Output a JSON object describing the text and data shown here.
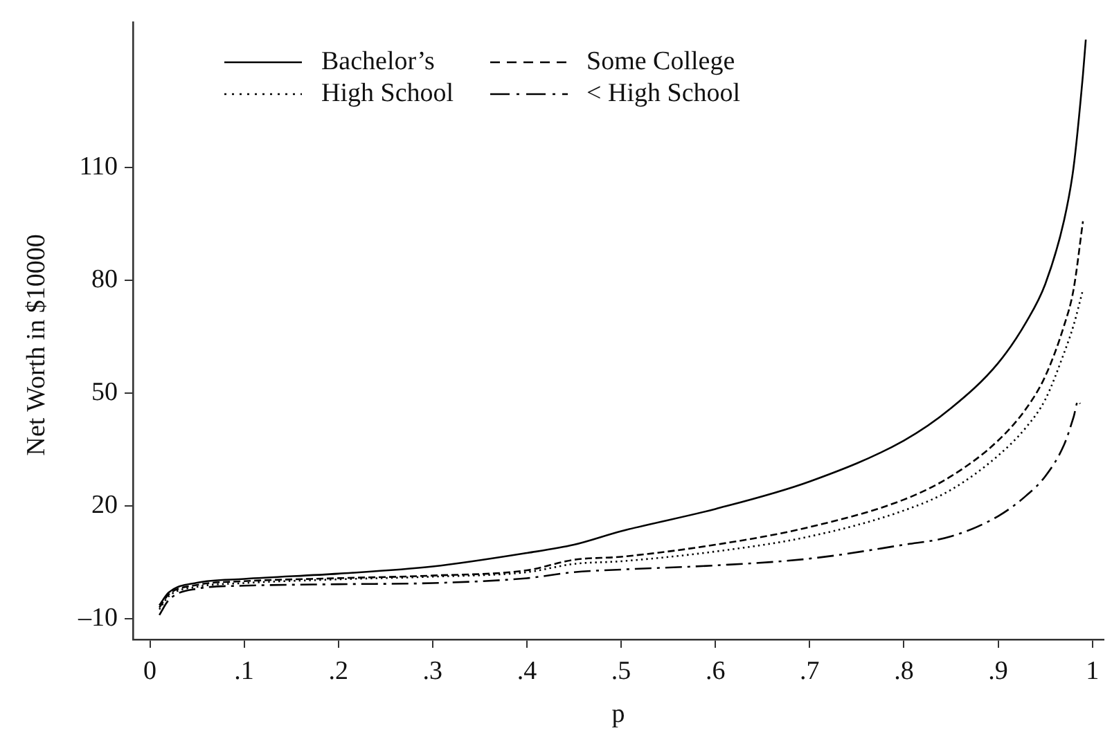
{
  "chart_data": {
    "type": "line",
    "xlabel": "p",
    "ylabel": "Net Worth in $10000",
    "xlim": [
      -0.018,
      1.012
    ],
    "ylim": [
      -15.5,
      148.5
    ],
    "xticks": [
      0,
      {
        "value": 0.1,
        "label": ".1"
      },
      {
        "value": 0.2,
        "label": ".2"
      },
      {
        "value": 0.3,
        "label": ".3"
      },
      {
        "value": 0.4,
        "label": ".4"
      },
      {
        "value": 0.5,
        "label": ".5"
      },
      {
        "value": 0.6,
        "label": ".6"
      },
      {
        "value": 0.7,
        "label": ".7"
      },
      {
        "value": 0.8,
        "label": ".8"
      },
      {
        "value": 0.9,
        "label": ".9"
      },
      1
    ],
    "yticks": [
      {
        "value": -10,
        "label": "–10"
      },
      20,
      50,
      80,
      110
    ],
    "grid": false,
    "legend": "top left",
    "marker": "none",
    "series": [
      {
        "name": "Bachelor’s",
        "color": "#000000",
        "line_style": "solid",
        "x": [
          0.01,
          0.02,
          0.05,
          0.1,
          0.2,
          0.3,
          0.4,
          0.45,
          0.5,
          0.6,
          0.7,
          0.8,
          0.85,
          0.9,
          0.93,
          0.95,
          0.97,
          0.98,
          0.99,
          0.993
        ],
        "values": [
          -6.4,
          -3,
          -0.4,
          0.6,
          2,
          3.9,
          7.5,
          9.7,
          13.3,
          19.2,
          26.5,
          37.4,
          46,
          58,
          69,
          79,
          96,
          110,
          134.7,
          144
        ]
      },
      {
        "name": "Some College",
        "color": "#000000",
        "line_style": "dashed",
        "x": [
          0.01,
          0.02,
          0.05,
          0.1,
          0.2,
          0.3,
          0.4,
          0.45,
          0.5,
          0.6,
          0.7,
          0.8,
          0.85,
          0.9,
          0.93,
          0.95,
          0.97,
          0.98,
          0.99
        ],
        "values": [
          -7,
          -3.5,
          -1,
          0,
          0.8,
          1.5,
          2.9,
          5.7,
          6.5,
          9.7,
          14.4,
          21.7,
          27.9,
          37.4,
          46,
          54.5,
          68,
          77.5,
          95.7
        ]
      },
      {
        "name": "High School",
        "color": "#000000",
        "line_style": "dotted",
        "x": [
          0.01,
          0.02,
          0.05,
          0.1,
          0.2,
          0.3,
          0.4,
          0.45,
          0.5,
          0.6,
          0.7,
          0.8,
          0.85,
          0.9,
          0.93,
          0.95,
          0.97,
          0.98,
          0.99
        ],
        "values": [
          -7.5,
          -4,
          -1.5,
          -0.5,
          0.5,
          1.2,
          2.4,
          4.6,
          5.3,
          7.9,
          11.9,
          18.8,
          24.3,
          33.4,
          41,
          48.3,
          60.7,
          68,
          77.5
        ]
      },
      {
        "name": "< High School",
        "color": "#000000",
        "line_style": "dashdot",
        "x": [
          0.01,
          0.02,
          0.05,
          0.1,
          0.2,
          0.3,
          0.4,
          0.45,
          0.5,
          0.6,
          0.7,
          0.8,
          0.85,
          0.9,
          0.93,
          0.95,
          0.97,
          0.98,
          0.985,
          0.987
        ],
        "values": [
          -9,
          -5,
          -2,
          -1.2,
          -0.8,
          -0.5,
          0.8,
          2.4,
          3.1,
          4.2,
          6,
          9.7,
          11.9,
          17.3,
          22.8,
          27.9,
          36.3,
          43.6,
          48,
          47.2
        ]
      }
    ]
  }
}
